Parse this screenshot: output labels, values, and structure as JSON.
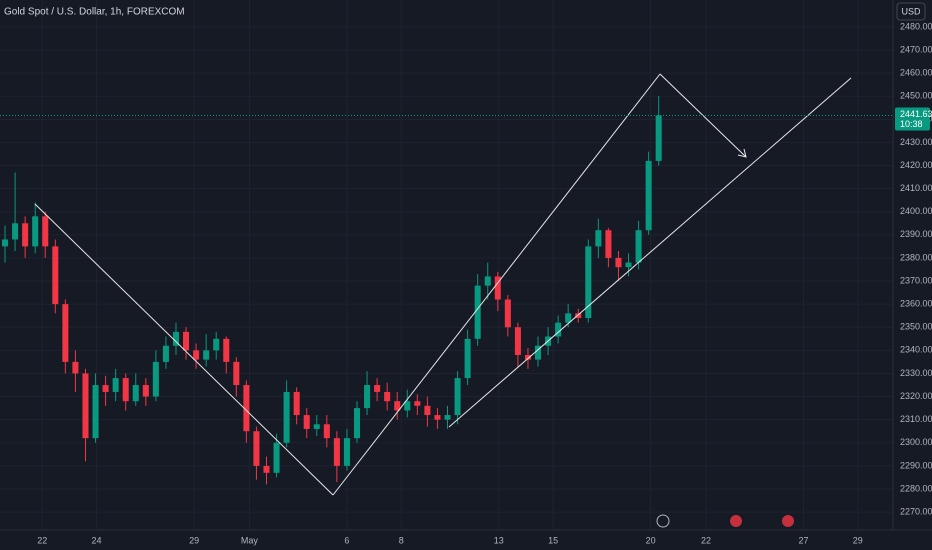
{
  "chart_data": {
    "type": "candlestick",
    "title": "Gold Spot / U.S. Dollar, 1h, FOREXCOM",
    "currency": "USD",
    "last_price": 2441.63,
    "countdown": "10:38",
    "up_color": "#089981",
    "down_color": "#f23645",
    "grid": true,
    "open": [
      2385,
      2388,
      2395,
      2385,
      2398,
      2385,
      2360,
      2335,
      2330,
      2302,
      2325,
      2322,
      2328,
      2318,
      2325,
      2320,
      2335,
      2342,
      2348,
      2340,
      2336,
      2340,
      2345,
      2335,
      2325,
      2305,
      2290,
      2287,
      2300,
      2322,
      2312,
      2306,
      2308,
      2302,
      2290,
      2302,
      2315,
      2325,
      2322,
      2318,
      2314,
      2318,
      2316,
      2312,
      2310,
      2312,
      2328,
      2345,
      2368,
      2372,
      2362,
      2350,
      2338,
      2336,
      2342,
      2346,
      2352,
      2356,
      2354,
      2385,
      2392,
      2380,
      2376,
      2378,
      2392,
      2422
    ],
    "high": [
      2394,
      2417,
      2398,
      2404,
      2400,
      2388,
      2362,
      2340,
      2332,
      2330,
      2329,
      2332,
      2330,
      2330,
      2328,
      2340,
      2346,
      2352,
      2350,
      2343,
      2347,
      2348,
      2346,
      2337,
      2327,
      2307,
      2294,
      2304,
      2327,
      2324,
      2315,
      2312,
      2312,
      2305,
      2306,
      2318,
      2331,
      2328,
      2326,
      2322,
      2323,
      2321,
      2320,
      2315,
      2316,
      2331,
      2349,
      2373,
      2378,
      2374,
      2364,
      2352,
      2341,
      2346,
      2350,
      2355,
      2360,
      2358,
      2388,
      2397,
      2393,
      2383,
      2382,
      2396,
      2426,
      2450
    ],
    "low": [
      2378,
      2383,
      2380,
      2382,
      2380,
      2356,
      2330,
      2322,
      2292,
      2300,
      2316,
      2318,
      2314,
      2316,
      2316,
      2318,
      2332,
      2338,
      2336,
      2332,
      2333,
      2336,
      2330,
      2320,
      2300,
      2284,
      2282,
      2285,
      2298,
      2308,
      2302,
      2303,
      2298,
      2283,
      2288,
      2300,
      2312,
      2318,
      2314,
      2310,
      2311,
      2312,
      2307,
      2306,
      2306,
      2308,
      2325,
      2342,
      2362,
      2357,
      2346,
      2333,
      2332,
      2333,
      2338,
      2343,
      2350,
      2352,
      2352,
      2380,
      2376,
      2370,
      2372,
      2375,
      2390,
      2420
    ],
    "close": [
      2388,
      2395,
      2385,
      2398,
      2385,
      2360,
      2335,
      2330,
      2302,
      2325,
      2322,
      2328,
      2318,
      2325,
      2320,
      2335,
      2342,
      2348,
      2340,
      2336,
      2340,
      2345,
      2335,
      2325,
      2305,
      2290,
      2287,
      2300,
      2322,
      2312,
      2306,
      2308,
      2302,
      2290,
      2302,
      2315,
      2325,
      2322,
      2318,
      2314,
      2318,
      2316,
      2312,
      2310,
      2312,
      2328,
      2345,
      2368,
      2372,
      2362,
      2350,
      2338,
      2336,
      2342,
      2346,
      2352,
      2356,
      2354,
      2385,
      2392,
      2380,
      2376,
      2378,
      2392,
      2422,
      2441.63
    ],
    "xlim": [
      -0.5,
      88.3
    ],
    "xticks": [
      {
        "value": 3.7,
        "label": "22"
      },
      {
        "value": 9.1,
        "label": "24"
      },
      {
        "value": 18.8,
        "label": "29"
      },
      {
        "value": 24.3,
        "label": "May"
      },
      {
        "value": 34.0,
        "label": "6"
      },
      {
        "value": 39.4,
        "label": "8"
      },
      {
        "value": 49.1,
        "label": "13"
      },
      {
        "value": 54.5,
        "label": "15"
      },
      {
        "value": 64.2,
        "label": "20"
      },
      {
        "value": 69.7,
        "label": "22"
      },
      {
        "value": 79.4,
        "label": "27"
      },
      {
        "value": 84.8,
        "label": "29"
      }
    ],
    "ylim": [
      2262.25,
      2491.64
    ],
    "yticks": [
      {
        "value": 2270,
        "label": "2270.00"
      },
      {
        "value": 2280,
        "label": "2280.00"
      },
      {
        "value": 2290,
        "label": "2290.00"
      },
      {
        "value": 2300,
        "label": "2300.00"
      },
      {
        "value": 2310,
        "label": "2310.00"
      },
      {
        "value": 2320,
        "label": "2320.00"
      },
      {
        "value": 2330,
        "label": "2330.00"
      },
      {
        "value": 2340,
        "label": "2340.00"
      },
      {
        "value": 2350,
        "label": "2350.00"
      },
      {
        "value": 2360,
        "label": "2360.00"
      },
      {
        "value": 2370,
        "label": "2370.00"
      },
      {
        "value": 2380,
        "label": "2380.00"
      },
      {
        "value": 2390,
        "label": "2390.00"
      },
      {
        "value": 2400,
        "label": "2400.00"
      },
      {
        "value": 2410,
        "label": "2410.00"
      },
      {
        "value": 2420,
        "label": "2420.00"
      },
      {
        "value": 2430,
        "label": "2430.00"
      },
      {
        "value": 2440,
        "label": "2440.00"
      },
      {
        "value": 2450,
        "label": "2450.00"
      },
      {
        "value": 2460,
        "label": "2460.00"
      },
      {
        "value": 2470,
        "label": "2470.00"
      },
      {
        "value": 2480,
        "label": "2480.00"
      }
    ]
  }
}
